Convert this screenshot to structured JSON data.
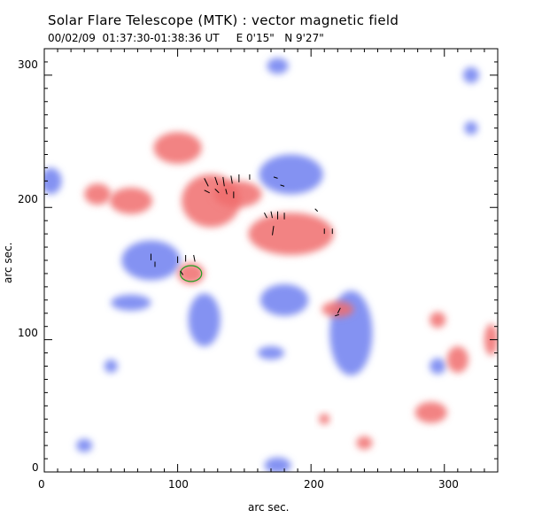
{
  "header": {
    "title": "Solar Flare Telescope (MTK) : vector magnetic field",
    "subtitle": "00/02/09  01:37:30-01:38:36 UT     E 0'15\"   N 9'27\""
  },
  "axes": {
    "xlabel": "arc sec.",
    "ylabel": "arc sec.",
    "xlim": [
      0,
      340
    ],
    "ylim": [
      0,
      320
    ],
    "x_ticks": [
      "0",
      "100",
      "200",
      "300"
    ],
    "y_ticks": [
      "0",
      "100",
      "200",
      "300"
    ]
  },
  "colors": {
    "positive_polarity": "#f06c6c",
    "negative_polarity": "#6f7ff0",
    "vector": "#000000",
    "contour": "#22a022"
  },
  "chart_data": {
    "type": "heatmap",
    "title": "Solar Flare Telescope (MTK) : vector magnetic field",
    "xlabel": "arc sec.",
    "ylabel": "arc sec.",
    "xlim": [
      0,
      340
    ],
    "ylim": [
      0,
      320
    ],
    "positive_regions": [
      {
        "cx": 125,
        "cy": 205,
        "rx": 22,
        "ry": 20
      },
      {
        "cx": 145,
        "cy": 210,
        "rx": 18,
        "ry": 10
      },
      {
        "cx": 185,
        "cy": 180,
        "rx": 32,
        "ry": 16
      },
      {
        "cx": 110,
        "cy": 150,
        "rx": 10,
        "ry": 8
      },
      {
        "cx": 220,
        "cy": 123,
        "rx": 12,
        "ry": 6
      },
      {
        "cx": 100,
        "cy": 245,
        "rx": 18,
        "ry": 12
      },
      {
        "cx": 65,
        "cy": 205,
        "rx": 16,
        "ry": 10
      },
      {
        "cx": 40,
        "cy": 210,
        "rx": 10,
        "ry": 8
      },
      {
        "cx": 310,
        "cy": 85,
        "rx": 8,
        "ry": 10
      },
      {
        "cx": 290,
        "cy": 45,
        "rx": 12,
        "ry": 8
      },
      {
        "cx": 295,
        "cy": 115,
        "rx": 6,
        "ry": 6
      },
      {
        "cx": 335,
        "cy": 100,
        "rx": 5,
        "ry": 12
      },
      {
        "cx": 240,
        "cy": 22,
        "rx": 6,
        "ry": 5
      },
      {
        "cx": 210,
        "cy": 40,
        "rx": 4,
        "ry": 4
      }
    ],
    "negative_regions": [
      {
        "cx": 80,
        "cy": 160,
        "rx": 22,
        "ry": 15
      },
      {
        "cx": 185,
        "cy": 225,
        "rx": 24,
        "ry": 15
      },
      {
        "cx": 230,
        "cy": 105,
        "rx": 16,
        "ry": 32
      },
      {
        "cx": 180,
        "cy": 130,
        "rx": 18,
        "ry": 12
      },
      {
        "cx": 120,
        "cy": 115,
        "rx": 12,
        "ry": 20
      },
      {
        "cx": 65,
        "cy": 128,
        "rx": 15,
        "ry": 6
      },
      {
        "cx": 5,
        "cy": 220,
        "rx": 8,
        "ry": 10
      },
      {
        "cx": 50,
        "cy": 80,
        "rx": 5,
        "ry": 5
      },
      {
        "cx": 170,
        "cy": 90,
        "rx": 10,
        "ry": 5
      },
      {
        "cx": 295,
        "cy": 80,
        "rx": 6,
        "ry": 6
      },
      {
        "cx": 175,
        "cy": 5,
        "rx": 10,
        "ry": 6
      },
      {
        "cx": 30,
        "cy": 20,
        "rx": 6,
        "ry": 5
      },
      {
        "cx": 175,
        "cy": 307,
        "rx": 8,
        "ry": 6
      },
      {
        "cx": 320,
        "cy": 300,
        "rx": 6,
        "ry": 6
      },
      {
        "cx": 320,
        "cy": 260,
        "rx": 5,
        "ry": 5
      }
    ],
    "vectors": [
      {
        "x": 120,
        "y": 222,
        "dx": 3,
        "dy": -6
      },
      {
        "x": 128,
        "y": 223,
        "dx": 2,
        "dy": -6
      },
      {
        "x": 134,
        "y": 223,
        "dx": 1,
        "dy": -7
      },
      {
        "x": 140,
        "y": 224,
        "dx": 1,
        "dy": -6
      },
      {
        "x": 146,
        "y": 225,
        "dx": 0,
        "dy": -6
      },
      {
        "x": 154,
        "y": 225,
        "dx": 0,
        "dy": -4
      },
      {
        "x": 120,
        "y": 213,
        "dx": 4,
        "dy": -2
      },
      {
        "x": 128,
        "y": 214,
        "dx": 3,
        "dy": -3
      },
      {
        "x": 136,
        "y": 214,
        "dx": 1,
        "dy": -4
      },
      {
        "x": 142,
        "y": 212,
        "dx": 0,
        "dy": -5
      },
      {
        "x": 175,
        "y": 222,
        "dx": -3,
        "dy": 1
      },
      {
        "x": 180,
        "y": 216,
        "dx": -3,
        "dy": 1
      },
      {
        "x": 165,
        "y": 196,
        "dx": 2,
        "dy": -4
      },
      {
        "x": 170,
        "y": 197,
        "dx": 1,
        "dy": -5
      },
      {
        "x": 175,
        "y": 197,
        "dx": 0,
        "dy": -6
      },
      {
        "x": 180,
        "y": 196,
        "dx": 0,
        "dy": -5
      },
      {
        "x": 172,
        "y": 186,
        "dx": -1,
        "dy": -7
      },
      {
        "x": 203,
        "y": 199,
        "dx": 2,
        "dy": -2
      },
      {
        "x": 210,
        "y": 184,
        "dx": 0,
        "dy": -4
      },
      {
        "x": 216,
        "y": 184,
        "dx": 0,
        "dy": -4
      },
      {
        "x": 80,
        "y": 165,
        "dx": 0,
        "dy": -5
      },
      {
        "x": 83,
        "y": 159,
        "dx": 0,
        "dy": -4
      },
      {
        "x": 100,
        "y": 163,
        "dx": 0,
        "dy": -5
      },
      {
        "x": 106,
        "y": 164,
        "dx": 0,
        "dy": -5
      },
      {
        "x": 112,
        "y": 164,
        "dx": 1,
        "dy": -5
      },
      {
        "x": 102,
        "y": 152,
        "dx": 2,
        "dy": -3
      },
      {
        "x": 222,
        "y": 124,
        "dx": -2,
        "dy": -4
      },
      {
        "x": 221,
        "y": 119,
        "dx": -3,
        "dy": -1
      }
    ],
    "contour": {
      "cx": 110,
      "cy": 150,
      "rx": 8,
      "ry": 6
    }
  }
}
